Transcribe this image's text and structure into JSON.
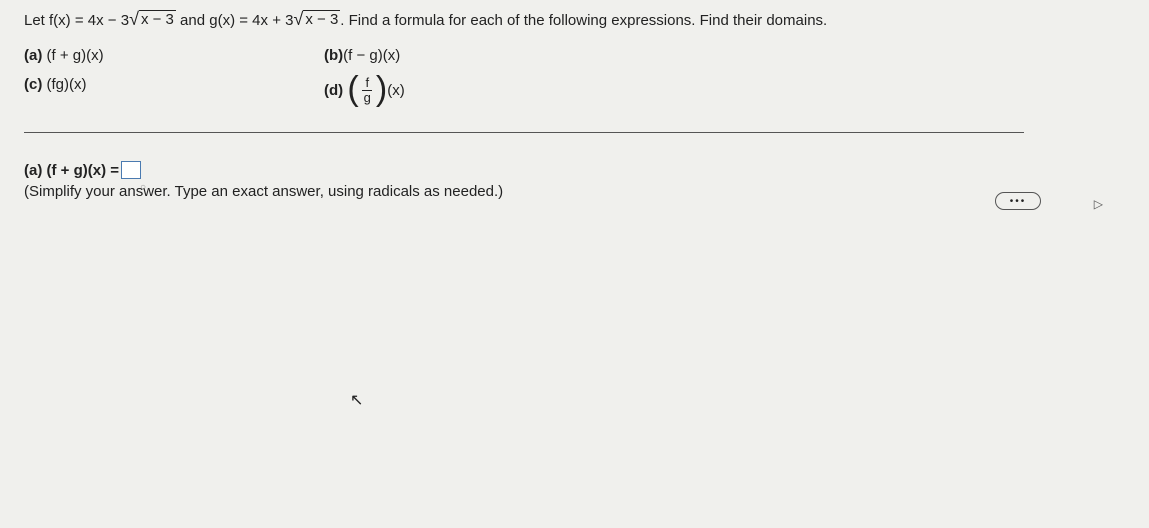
{
  "problem": {
    "prefix": "Let f(x) = 4x − 3",
    "radicand1": "x − 3",
    "middle": " and g(x) = 4x + 3",
    "radicand2": "x − 3",
    "suffix": ". Find a formula for each of the following expressions. Find their domains."
  },
  "items": {
    "a": {
      "label": "(a)",
      "expr": " (f + g)(x)"
    },
    "b": {
      "label": "(b)",
      "expr": " (f − g)(x)"
    },
    "c": {
      "label": "(c)",
      "expr": " (fg)(x)"
    },
    "d": {
      "label": "(d)",
      "num": "f",
      "den": "g",
      "tail": "(x)"
    }
  },
  "answer": {
    "label": "(a) (f + g)(x) = ",
    "hint": "(Simplify your answer. Type an exact answer, using radicals as needed.)"
  },
  "pill": "•••",
  "arrow": "▷",
  "cursor": "➤"
}
